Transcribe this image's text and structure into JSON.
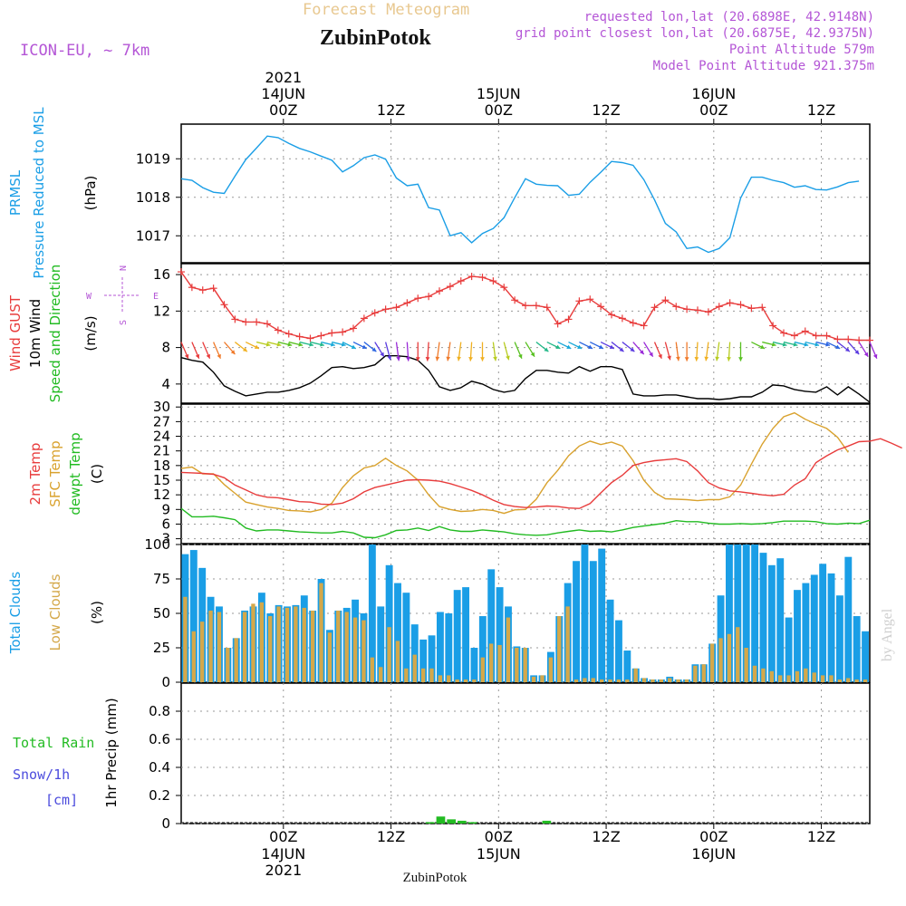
{
  "header": {
    "subtitle": "Forecast Meteogram",
    "station": "ZubinPotok",
    "model": "ICON-EU, ~ 7km",
    "requested": "requested lon,lat (20.6898E, 42.9148N)",
    "closest": "grid point closest lon,lat (20.6875E, 42.9375N)",
    "altitude": "Point Altitude 579m",
    "model_altitude": "Model Point Altitude 921.375m",
    "watermark": "by Angel",
    "footer_station": "ZubinPotok"
  },
  "colors": {
    "pressure": "#1a9ee6",
    "gust": "#e83c3c",
    "wind": "#000000",
    "temp2m": "#e83c3c",
    "sfc_temp": "#d9a22e",
    "dewpt": "#22bb22",
    "total_cloud": "#1a9ee6",
    "low_cloud": "#d4a84a",
    "rain": "#22bb22",
    "snow": "#4b4bdd",
    "compass": "#b456d6",
    "header_purple": "#b456d6",
    "subtitle": "#e8c890"
  },
  "chart_data": [
    {
      "type": "line",
      "title": "",
      "ylabel_lines": [
        "PRMSL",
        "Pressure Reduced to MSL"
      ],
      "unit": "(hPa)",
      "ylim": [
        1016.3,
        1019.9
      ],
      "ticks": [
        1017,
        1018,
        1019
      ],
      "x": [
        0,
        1,
        2,
        3,
        4,
        5,
        6,
        7,
        8,
        9,
        10,
        11,
        12,
        13,
        14,
        15,
        16,
        17,
        18,
        19,
        20,
        21,
        22,
        23,
        24,
        25,
        26,
        27,
        28,
        29,
        30,
        31,
        32,
        33,
        34,
        35,
        36,
        37,
        38,
        39,
        40,
        41,
        42,
        43,
        44,
        45,
        46,
        47,
        48,
        49,
        50,
        51,
        52,
        53,
        54,
        55,
        56,
        57,
        58,
        59,
        60,
        61,
        62,
        63
      ],
      "series": [
        {
          "name": "",
          "values": [
            1018.48,
            1018.44,
            1018.25,
            1018.13,
            1018.1,
            1018.55,
            1018.98,
            1019.28,
            1019.59,
            1019.55,
            1019.4,
            1019.27,
            1019.18,
            1019.07,
            1018.96,
            1018.66,
            1018.82,
            1019.03,
            1019.1,
            1018.99,
            1018.5,
            1018.3,
            1018.34,
            1017.73,
            1017.67,
            1017.0,
            1017.08,
            1016.82,
            1017.06,
            1017.19,
            1017.47,
            1017.99,
            1018.48,
            1018.34,
            1018.31,
            1018.3,
            1018.05,
            1018.08,
            1018.39,
            1018.65,
            1018.93,
            1018.9,
            1018.83,
            1018.46,
            1017.93,
            1017.32,
            1017.1,
            1016.67,
            1016.71,
            1016.57,
            1016.67,
            1016.95,
            1017.98,
            1018.52,
            1018.52,
            1018.44,
            1018.38,
            1018.26,
            1018.3,
            1018.2,
            1018.19,
            1018.27,
            1018.38,
            1018.42
          ]
        }
      ]
    },
    {
      "type": "line",
      "ylabel_lines": [
        "Wind GUST",
        "10m Wind",
        "Speed and Direction"
      ],
      "unit": "(m/s)",
      "ylim": [
        1.9,
        17.2
      ],
      "ticks": [
        4,
        8,
        12,
        16
      ],
      "compass": {
        "n": "N",
        "s": "S",
        "e": "E",
        "w": "W"
      },
      "series": [
        {
          "name": "Wind GUST",
          "values": [
            16.3,
            14.6,
            14.3,
            14.5,
            12.7,
            11.1,
            10.8,
            10.8,
            10.6,
            9.9,
            9.5,
            9.2,
            9.0,
            9.3,
            9.6,
            9.7,
            10.1,
            11.2,
            11.8,
            12.2,
            12.4,
            12.9,
            13.4,
            13.6,
            14.2,
            14.7,
            15.3,
            15.8,
            15.7,
            15.3,
            14.6,
            13.2,
            12.6,
            12.6,
            12.4,
            10.6,
            11.1,
            13.1,
            13.3,
            12.5,
            11.6,
            11.2,
            10.7,
            10.4,
            12.4,
            13.2,
            12.5,
            12.2,
            12.1,
            11.9,
            12.5,
            12.9,
            12.7,
            12.3,
            12.4,
            10.4,
            9.6,
            9.3,
            9.8,
            9.3,
            9.3,
            8.9,
            8.9,
            8.8,
            8.8
          ]
        },
        {
          "name": "10m Wind",
          "values": [
            6.9,
            6.6,
            6.4,
            5.3,
            3.8,
            3.2,
            2.7,
            2.9,
            3.1,
            3.1,
            3.3,
            3.6,
            4.1,
            4.9,
            5.8,
            5.9,
            5.7,
            5.8,
            6.1,
            7.1,
            7.1,
            7.0,
            6.6,
            5.5,
            3.7,
            3.3,
            3.6,
            4.3,
            4.0,
            3.4,
            3.1,
            3.3,
            4.6,
            5.5,
            5.5,
            5.3,
            5.2,
            5.9,
            5.4,
            5.9,
            5.9,
            5.6,
            2.9,
            2.7,
            2.7,
            2.8,
            2.8,
            2.6,
            2.4,
            2.4,
            2.3,
            2.4,
            2.6,
            2.6,
            3.1,
            3.9,
            3.8,
            3.4,
            3.2,
            3.1,
            3.7,
            2.8,
            3.7,
            2.9,
            2.0
          ]
        }
      ],
      "wind_dirs_deg": [
        330,
        330,
        330,
        330,
        310,
        300,
        290,
        280,
        280,
        280,
        280,
        280,
        280,
        280,
        280,
        290,
        290,
        300,
        320,
        340,
        350,
        355,
        0,
        5,
        10,
        10,
        10,
        5,
        0,
        350,
        340,
        330,
        320,
        300,
        290,
        290,
        290,
        290,
        290,
        290,
        300,
        300,
        310,
        320,
        330,
        340,
        350,
        0,
        5,
        10,
        10,
        5,
        0,
        290,
        280,
        280,
        280,
        280,
        280,
        280,
        290,
        300,
        310,
        320,
        330
      ]
    },
    {
      "type": "line",
      "ylabel_lines": [
        "2m Temp",
        "SFC Temp",
        "dewpt Temp"
      ],
      "unit": "(C)",
      "ylim": [
        2,
        30.6
      ],
      "ticks": [
        3,
        6,
        9,
        12,
        15,
        18,
        21,
        24,
        27,
        30
      ],
      "series": [
        {
          "name": "2m Temp",
          "values": [
            16.6,
            16.5,
            16.4,
            16.2,
            15.5,
            14.0,
            13.0,
            12.0,
            11.5,
            11.4,
            11.0,
            10.6,
            10.5,
            10.1,
            10.0,
            10.3,
            11.2,
            12.6,
            13.5,
            14.0,
            14.5,
            15.0,
            15.1,
            15.0,
            14.8,
            14.3,
            13.6,
            12.9,
            12.0,
            10.9,
            10.0,
            9.6,
            9.4,
            9.5,
            9.7,
            9.6,
            9.3,
            9.2,
            10.2,
            12.4,
            14.5,
            16.0,
            18.0,
            18.6,
            19.0,
            19.2,
            19.4,
            18.8,
            16.9,
            14.5,
            13.4,
            12.8,
            12.6,
            12.3,
            12.0,
            11.8,
            12.1,
            14.0,
            15.3,
            18.6,
            20.0,
            21.2,
            22.0,
            22.9,
            23.0,
            23.5,
            22.6,
            21.6
          ]
        },
        {
          "name": "SFC Temp",
          "values": [
            17.4,
            17.7,
            16.3,
            16.3,
            14.1,
            12.3,
            10.5,
            10.0,
            9.5,
            9.2,
            8.8,
            8.7,
            8.5,
            9.0,
            10.3,
            13.5,
            15.9,
            17.5,
            18.0,
            19.5,
            18.0,
            16.9,
            15.0,
            12.0,
            9.6,
            9.0,
            8.6,
            8.7,
            9.0,
            8.8,
            8.2,
            8.9,
            9.0,
            11.1,
            14.5,
            17.0,
            20.0,
            22.0,
            23.0,
            22.3,
            22.8,
            22.0,
            19.0,
            15.0,
            12.5,
            11.2,
            11.1,
            11.0,
            10.8,
            11.0,
            11.0,
            11.6,
            14.0,
            18.3,
            22.4,
            25.6,
            28.0,
            28.8,
            27.5,
            26.5,
            25.6,
            23.8,
            20.7
          ]
        },
        {
          "name": "dewpt Temp",
          "values": [
            9.2,
            7.5,
            7.5,
            7.6,
            7.3,
            6.9,
            5.2,
            4.6,
            4.8,
            4.8,
            4.6,
            4.4,
            4.3,
            4.2,
            4.2,
            4.5,
            4.2,
            3.3,
            3.2,
            3.8,
            4.7,
            4.8,
            5.2,
            4.7,
            5.5,
            4.8,
            4.5,
            4.5,
            4.8,
            4.6,
            4.4,
            4.0,
            3.8,
            3.7,
            3.8,
            4.2,
            4.5,
            4.8,
            4.5,
            4.6,
            4.4,
            4.8,
            5.3,
            5.6,
            5.9,
            6.2,
            6.7,
            6.5,
            6.5,
            6.2,
            6.0,
            6.0,
            6.1,
            6.0,
            6.1,
            6.3,
            6.6,
            6.6,
            6.6,
            6.5,
            6.1,
            6.0,
            6.2,
            6.1,
            6.8
          ]
        }
      ]
    },
    {
      "type": "bar",
      "ylabel_lines": [
        "Total Clouds",
        "Low Clouds"
      ],
      "unit": "(%)",
      "ylim": [
        0,
        100
      ],
      "ticks": [
        0,
        25,
        50,
        75,
        100
      ],
      "series": [
        {
          "name": "Total Clouds",
          "values": [
            93,
            96,
            83,
            62,
            55,
            25,
            32,
            52,
            55,
            65,
            50,
            56,
            55,
            56,
            63,
            52,
            75,
            38,
            52,
            54,
            60,
            50,
            100,
            55,
            85,
            72,
            65,
            42,
            31,
            34,
            51,
            50,
            67,
            69,
            25,
            48,
            82,
            69,
            55,
            26,
            25,
            5,
            5,
            22,
            48,
            72,
            88,
            100,
            88,
            97,
            60,
            45,
            23,
            10,
            3,
            2,
            2,
            4,
            2,
            2,
            13,
            13,
            28,
            63,
            100,
            100,
            100,
            100,
            94,
            85,
            90,
            47,
            67,
            72,
            78,
            86,
            79,
            63,
            91,
            48,
            37
          ]
        },
        {
          "name": "Low Clouds",
          "values": [
            62,
            37,
            44,
            52,
            51,
            25,
            32,
            51,
            57,
            58,
            48,
            55,
            54,
            55,
            54,
            52,
            72,
            36,
            52,
            51,
            47,
            45,
            18,
            11,
            40,
            30,
            10,
            20,
            10,
            10,
            5,
            5,
            2,
            2,
            2,
            18,
            28,
            27,
            47,
            25,
            25,
            4,
            5,
            18,
            48,
            55,
            2,
            3,
            3,
            2,
            2,
            2,
            2,
            10,
            3,
            2,
            2,
            3,
            2,
            2,
            12,
            13,
            28,
            32,
            35,
            40,
            25,
            12,
            10,
            8,
            5,
            5,
            8,
            10,
            7,
            5,
            5,
            2,
            3,
            2,
            2
          ]
        }
      ]
    },
    {
      "type": "bar",
      "ylabel": "1hr Precip (mm)",
      "legend": [
        "Total  Rain",
        "Snow/1h",
        "[cm]"
      ],
      "ylim": [
        0,
        1.0
      ],
      "ticks": [
        0,
        0.2,
        0.4,
        0.6,
        0.8
      ],
      "series": [
        {
          "name": "Total  Rain",
          "values": [
            0,
            0,
            0,
            0,
            0,
            0,
            0,
            0,
            0,
            0,
            0,
            0,
            0,
            0,
            0,
            0,
            0,
            0,
            0,
            0,
            0,
            0,
            0,
            0.01,
            0.05,
            0.03,
            0.02,
            0.01,
            0,
            0,
            0,
            0,
            0,
            0,
            0.02,
            0,
            0,
            0,
            0,
            0,
            0,
            0,
            0,
            0,
            0,
            0,
            0,
            0,
            0,
            0,
            0,
            0,
            0,
            0,
            0,
            0,
            0,
            0,
            0,
            0,
            0,
            0,
            0,
            0,
            0
          ]
        },
        {
          "name": "Snow/1h",
          "values": []
        }
      ]
    }
  ],
  "time_axis": {
    "ticks": [
      {
        "x": 9.5,
        "top": "00Z",
        "date": "14JUN",
        "year": "2021"
      },
      {
        "x": 19.5,
        "top": "12Z",
        "date": "",
        "year": ""
      },
      {
        "x": 29.5,
        "top": "00Z",
        "date": "15JUN",
        "year": ""
      },
      {
        "x": 39.5,
        "top": "12Z",
        "date": "",
        "year": ""
      },
      {
        "x": 49.5,
        "top": "00Z",
        "date": "16JUN",
        "year": ""
      },
      {
        "x": 59.5,
        "top": "12Z",
        "date": "",
        "year": ""
      }
    ]
  }
}
